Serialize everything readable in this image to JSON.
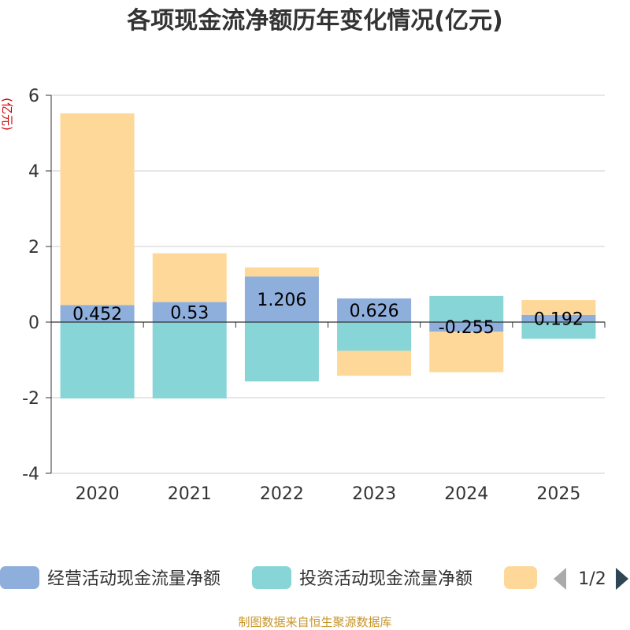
{
  "chart_data": {
    "type": "bar",
    "stacked": true,
    "title": "各项现金流净额历年变化情况(亿元)",
    "ylabel": "(亿元)",
    "xlabel": "",
    "categories": [
      "2020",
      "2021",
      "2022",
      "2023",
      "2024",
      "2025"
    ],
    "ylim": [
      -4,
      6
    ],
    "yticks": [
      -4,
      -2,
      0,
      2,
      4,
      6
    ],
    "grid": true,
    "series": [
      {
        "name": "经营活动现金流量净额",
        "color": "#8eaedc",
        "values": [
          0.452,
          0.53,
          1.206,
          0.626,
          -0.255,
          0.192
        ],
        "labels": [
          "0.452",
          "0.53",
          "1.206",
          "0.626",
          "-0.255",
          "0.192"
        ]
      },
      {
        "name": "投资活动现金流量净额",
        "color": "#88d5d8",
        "values": [
          -2.02,
          -2.02,
          -1.57,
          -0.76,
          0.69,
          -0.44
        ]
      },
      {
        "name": "",
        "color": "#fed898",
        "values": [
          5.07,
          1.29,
          0.24,
          -0.66,
          -1.07,
          0.39
        ]
      }
    ],
    "legend": {
      "position": "bottom",
      "page": "1/2"
    },
    "source": "制图数据来自恒生聚源数据库"
  }
}
